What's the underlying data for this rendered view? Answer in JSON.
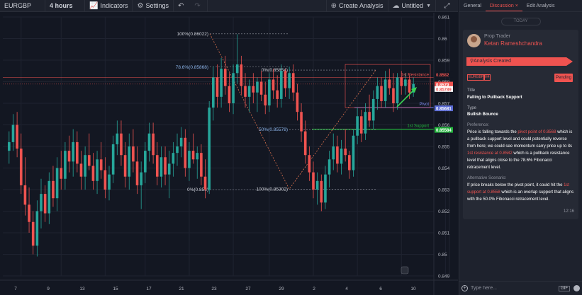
{
  "toolbar": {
    "symbol": "EURGBP",
    "interval": "4 hours",
    "indicators": "Indicators",
    "settings": "Settings",
    "create_analysis": "Create Analysis",
    "untitled": "Untitled"
  },
  "panel": {
    "tabs": [
      "General",
      "Discussion ×",
      "Edit Analysis"
    ],
    "active_tab": 1,
    "today": "TODAY",
    "role": "Prop Trader",
    "author": "Ketan Rameshchandra",
    "banner": "Analysis Created",
    "chip_pair": "EURGBP",
    "chip_tf": "H4",
    "status": "Pending",
    "title_label": "Title",
    "title_value": "Falling to Pullback Support",
    "type_label": "Type",
    "type_value": "Bullish Bounce",
    "pref_label": "Preference:",
    "pref_parts": {
      "a": "Price is falling towards the ",
      "b": "pivot point of 0.8568",
      "c": " which is a pullback support level and could potentially reverse from here; we could see momentum carry price up to its ",
      "d": "1st resistance at 0.8582",
      "e": " which is a pullback resistance level that aligns close to the 78.6% Fibonacci retracement level."
    },
    "alt_label": "Alternative Scenario:",
    "alt_parts": {
      "a": "If price breaks below the pivot point, it could hit the ",
      "b": "1st support at 0.8558",
      "c": " which is an overlap support that aligns with the 50.0% Fibonacci retracement level."
    },
    "time": "12:16",
    "composer_placeholder": "Type here...",
    "gif": "GIF"
  },
  "colors": {
    "bull": "#26a69a",
    "bear": "#ef5350",
    "resistance": "#ef5350",
    "pivot": "#5b6bd5",
    "support": "#22b33c"
  },
  "chart_labels": {
    "fib_100_top": "100%(0.86022)",
    "fib_786": "78.6%(0.85868)",
    "fib_0_top": "0%(0.85854)",
    "fib_50": "50%(0.85578)",
    "fib_0_bottom": "0%(0.853)",
    "fib_100_bottom": "100%(0.85302)",
    "resistance": "1st Resistance",
    "pivot": "Pivot",
    "support": "1st Support",
    "tag_res_1": "0.8582",
    "tag_res_2": "0.8579",
    "tag_last": "0.85789",
    "tag_pivot": "0.85681",
    "tag_support": "0.85584"
  },
  "chart_data": {
    "type": "candlestick",
    "symbol": "EURGBP",
    "interval": "4 hours",
    "y_ticks": [
      0.861,
      0.86,
      0.859,
      0.858,
      0.857,
      0.856,
      0.855,
      0.854,
      0.853,
      0.852,
      0.851,
      0.85,
      0.849
    ],
    "x_ticks": [
      "7",
      "9",
      "13",
      "15",
      "17",
      "21",
      "23",
      "27",
      "29",
      "2",
      "4",
      "6",
      "10"
    ],
    "ylim": [
      0.849,
      0.861
    ],
    "levels": {
      "resistance_1": 0.8582,
      "pivot": 0.8568,
      "support_1": 0.8558,
      "last_price": 0.85789
    },
    "fibonacci": [
      {
        "level": "100%",
        "price": 0.86022
      },
      {
        "level": "78.6%",
        "price": 0.85868
      },
      {
        "level": "50%",
        "price": 0.85578
      },
      {
        "level": "0%",
        "price": 0.853
      }
    ],
    "candles": [
      {
        "o": 0.8548,
        "h": 0.8557,
        "l": 0.8542,
        "c": 0.8552
      },
      {
        "o": 0.8552,
        "h": 0.8565,
        "l": 0.8548,
        "c": 0.856
      },
      {
        "o": 0.856,
        "h": 0.8566,
        "l": 0.8545,
        "c": 0.8549
      },
      {
        "o": 0.8549,
        "h": 0.8556,
        "l": 0.8528,
        "c": 0.8532
      },
      {
        "o": 0.8532,
        "h": 0.8545,
        "l": 0.8518,
        "c": 0.8523
      },
      {
        "o": 0.8523,
        "h": 0.8531,
        "l": 0.851,
        "c": 0.8515
      },
      {
        "o": 0.8515,
        "h": 0.852,
        "l": 0.85,
        "c": 0.8504
      },
      {
        "o": 0.8504,
        "h": 0.8525,
        "l": 0.8499,
        "c": 0.852
      },
      {
        "o": 0.852,
        "h": 0.8535,
        "l": 0.8512,
        "c": 0.8528
      },
      {
        "o": 0.8528,
        "h": 0.8532,
        "l": 0.8515,
        "c": 0.8519
      },
      {
        "o": 0.8519,
        "h": 0.8538,
        "l": 0.8514,
        "c": 0.8534
      },
      {
        "o": 0.8534,
        "h": 0.8541,
        "l": 0.8522,
        "c": 0.8526
      },
      {
        "o": 0.8526,
        "h": 0.8545,
        "l": 0.852,
        "c": 0.854
      },
      {
        "o": 0.854,
        "h": 0.8548,
        "l": 0.853,
        "c": 0.8535
      },
      {
        "o": 0.8535,
        "h": 0.8552,
        "l": 0.853,
        "c": 0.8548
      },
      {
        "o": 0.8548,
        "h": 0.8555,
        "l": 0.8538,
        "c": 0.8543
      },
      {
        "o": 0.8543,
        "h": 0.8558,
        "l": 0.8536,
        "c": 0.8552
      },
      {
        "o": 0.8552,
        "h": 0.8557,
        "l": 0.8538,
        "c": 0.8542
      },
      {
        "o": 0.8542,
        "h": 0.8548,
        "l": 0.853,
        "c": 0.8536
      },
      {
        "o": 0.8536,
        "h": 0.855,
        "l": 0.853,
        "c": 0.8546
      },
      {
        "o": 0.8546,
        "h": 0.8556,
        "l": 0.8539,
        "c": 0.8541
      },
      {
        "o": 0.8541,
        "h": 0.8547,
        "l": 0.853,
        "c": 0.8534
      },
      {
        "o": 0.8534,
        "h": 0.8548,
        "l": 0.8528,
        "c": 0.8544
      },
      {
        "o": 0.8544,
        "h": 0.8552,
        "l": 0.8535,
        "c": 0.8539
      },
      {
        "o": 0.8539,
        "h": 0.8545,
        "l": 0.8526,
        "c": 0.853
      },
      {
        "o": 0.853,
        "h": 0.8541,
        "l": 0.8525,
        "c": 0.8537
      },
      {
        "o": 0.8537,
        "h": 0.8555,
        "l": 0.8533,
        "c": 0.8551
      },
      {
        "o": 0.8551,
        "h": 0.8562,
        "l": 0.8546,
        "c": 0.8556
      },
      {
        "o": 0.8556,
        "h": 0.8562,
        "l": 0.8541,
        "c": 0.8546
      },
      {
        "o": 0.8546,
        "h": 0.8552,
        "l": 0.8531,
        "c": 0.8536
      },
      {
        "o": 0.8536,
        "h": 0.8556,
        "l": 0.853,
        "c": 0.855
      },
      {
        "o": 0.855,
        "h": 0.8558,
        "l": 0.8538,
        "c": 0.8543
      },
      {
        "o": 0.8543,
        "h": 0.855,
        "l": 0.8528,
        "c": 0.8532
      },
      {
        "o": 0.8532,
        "h": 0.8543,
        "l": 0.8521,
        "c": 0.8538
      },
      {
        "o": 0.8538,
        "h": 0.8552,
        "l": 0.8533,
        "c": 0.8548
      },
      {
        "o": 0.8548,
        "h": 0.8561,
        "l": 0.8543,
        "c": 0.8556
      },
      {
        "o": 0.8556,
        "h": 0.8561,
        "l": 0.8542,
        "c": 0.8546
      },
      {
        "o": 0.8546,
        "h": 0.8552,
        "l": 0.8532,
        "c": 0.8536
      },
      {
        "o": 0.8536,
        "h": 0.855,
        "l": 0.8531,
        "c": 0.8545
      },
      {
        "o": 0.8545,
        "h": 0.855,
        "l": 0.8532,
        "c": 0.8537
      },
      {
        "o": 0.8537,
        "h": 0.8548,
        "l": 0.8526,
        "c": 0.8542
      },
      {
        "o": 0.8542,
        "h": 0.8552,
        "l": 0.8536,
        "c": 0.8547
      },
      {
        "o": 0.8547,
        "h": 0.8556,
        "l": 0.8541,
        "c": 0.855
      },
      {
        "o": 0.855,
        "h": 0.8559,
        "l": 0.8545,
        "c": 0.8554
      },
      {
        "o": 0.8554,
        "h": 0.8558,
        "l": 0.8536,
        "c": 0.854
      },
      {
        "o": 0.854,
        "h": 0.8552,
        "l": 0.8534,
        "c": 0.8548
      },
      {
        "o": 0.8548,
        "h": 0.8556,
        "l": 0.8542,
        "c": 0.8544
      },
      {
        "o": 0.8544,
        "h": 0.855,
        "l": 0.8535,
        "c": 0.8547
      },
      {
        "o": 0.8547,
        "h": 0.8551,
        "l": 0.8532,
        "c": 0.8536
      },
      {
        "o": 0.8536,
        "h": 0.8544,
        "l": 0.8526,
        "c": 0.853
      },
      {
        "o": 0.853,
        "h": 0.8571,
        "l": 0.8528,
        "c": 0.8568
      },
      {
        "o": 0.8568,
        "h": 0.8587,
        "l": 0.8562,
        "c": 0.8582
      },
      {
        "o": 0.8582,
        "h": 0.8588,
        "l": 0.8568,
        "c": 0.8573
      },
      {
        "o": 0.8573,
        "h": 0.8591,
        "l": 0.8568,
        "c": 0.8586
      },
      {
        "o": 0.8586,
        "h": 0.8592,
        "l": 0.8574,
        "c": 0.8578
      },
      {
        "o": 0.8578,
        "h": 0.8584,
        "l": 0.8566,
        "c": 0.857
      },
      {
        "o": 0.857,
        "h": 0.8588,
        "l": 0.8565,
        "c": 0.8584
      },
      {
        "o": 0.8584,
        "h": 0.8602,
        "l": 0.8579,
        "c": 0.8588
      },
      {
        "o": 0.8588,
        "h": 0.8592,
        "l": 0.8574,
        "c": 0.8578
      },
      {
        "o": 0.8578,
        "h": 0.8584,
        "l": 0.8568,
        "c": 0.8573
      },
      {
        "o": 0.8573,
        "h": 0.8581,
        "l": 0.8566,
        "c": 0.8578
      },
      {
        "o": 0.8578,
        "h": 0.8584,
        "l": 0.857,
        "c": 0.8575
      },
      {
        "o": 0.8575,
        "h": 0.8582,
        "l": 0.8566,
        "c": 0.858
      },
      {
        "o": 0.858,
        "h": 0.8585,
        "l": 0.8571,
        "c": 0.8574
      },
      {
        "o": 0.8574,
        "h": 0.858,
        "l": 0.8565,
        "c": 0.8569
      },
      {
        "o": 0.8569,
        "h": 0.8584,
        "l": 0.8566,
        "c": 0.8581
      },
      {
        "o": 0.8581,
        "h": 0.8586,
        "l": 0.8572,
        "c": 0.8576
      },
      {
        "o": 0.8576,
        "h": 0.8583,
        "l": 0.8568,
        "c": 0.8572
      },
      {
        "o": 0.8572,
        "h": 0.8588,
        "l": 0.8568,
        "c": 0.8585
      },
      {
        "o": 0.8585,
        "h": 0.8586,
        "l": 0.8573,
        "c": 0.8577
      },
      {
        "o": 0.8577,
        "h": 0.8587,
        "l": 0.8572,
        "c": 0.8584
      },
      {
        "o": 0.8584,
        "h": 0.8588,
        "l": 0.8571,
        "c": 0.8575
      },
      {
        "o": 0.8575,
        "h": 0.8579,
        "l": 0.8562,
        "c": 0.8566
      },
      {
        "o": 0.8566,
        "h": 0.857,
        "l": 0.8552,
        "c": 0.8557
      },
      {
        "o": 0.8557,
        "h": 0.8562,
        "l": 0.8542,
        "c": 0.8546
      },
      {
        "o": 0.8546,
        "h": 0.855,
        "l": 0.8534,
        "c": 0.8538
      },
      {
        "o": 0.8538,
        "h": 0.8543,
        "l": 0.8526,
        "c": 0.853
      },
      {
        "o": 0.853,
        "h": 0.8538,
        "l": 0.8523,
        "c": 0.8534
      },
      {
        "o": 0.8534,
        "h": 0.8537,
        "l": 0.852,
        "c": 0.8524
      },
      {
        "o": 0.8524,
        "h": 0.8541,
        "l": 0.8521,
        "c": 0.8537
      },
      {
        "o": 0.8537,
        "h": 0.8548,
        "l": 0.8531,
        "c": 0.8544
      },
      {
        "o": 0.8544,
        "h": 0.8556,
        "l": 0.8539,
        "c": 0.855
      },
      {
        "o": 0.855,
        "h": 0.8555,
        "l": 0.8538,
        "c": 0.8542
      },
      {
        "o": 0.8542,
        "h": 0.8553,
        "l": 0.8537,
        "c": 0.8549
      },
      {
        "o": 0.8549,
        "h": 0.8558,
        "l": 0.8543,
        "c": 0.8546
      },
      {
        "o": 0.8546,
        "h": 0.8548,
        "l": 0.8535,
        "c": 0.8539
      },
      {
        "o": 0.8539,
        "h": 0.8558,
        "l": 0.8536,
        "c": 0.8555
      },
      {
        "o": 0.8555,
        "h": 0.8568,
        "l": 0.8551,
        "c": 0.8564
      },
      {
        "o": 0.8564,
        "h": 0.8567,
        "l": 0.8552,
        "c": 0.8556
      },
      {
        "o": 0.8556,
        "h": 0.857,
        "l": 0.8553,
        "c": 0.8566
      },
      {
        "o": 0.8566,
        "h": 0.8574,
        "l": 0.8559,
        "c": 0.8562
      },
      {
        "o": 0.8562,
        "h": 0.8576,
        "l": 0.8558,
        "c": 0.8572
      },
      {
        "o": 0.8572,
        "h": 0.8582,
        "l": 0.8567,
        "c": 0.8578
      },
      {
        "o": 0.8578,
        "h": 0.8582,
        "l": 0.8568,
        "c": 0.8571
      },
      {
        "o": 0.8571,
        "h": 0.8585,
        "l": 0.8568,
        "c": 0.8581
      },
      {
        "o": 0.8581,
        "h": 0.8586,
        "l": 0.8574,
        "c": 0.8577
      },
      {
        "o": 0.8577,
        "h": 0.8584,
        "l": 0.8566,
        "c": 0.857
      },
      {
        "o": 0.857,
        "h": 0.8584,
        "l": 0.8567,
        "c": 0.8582
      },
      {
        "o": 0.8582,
        "h": 0.8585,
        "l": 0.8574,
        "c": 0.8578
      },
      {
        "o": 0.8578,
        "h": 0.8584,
        "l": 0.8574,
        "c": 0.8581
      },
      {
        "o": 0.8581,
        "h": 0.8583,
        "l": 0.8572,
        "c": 0.8575
      },
      {
        "o": 0.8575,
        "h": 0.8582,
        "l": 0.8573,
        "c": 0.8579
      }
    ]
  }
}
